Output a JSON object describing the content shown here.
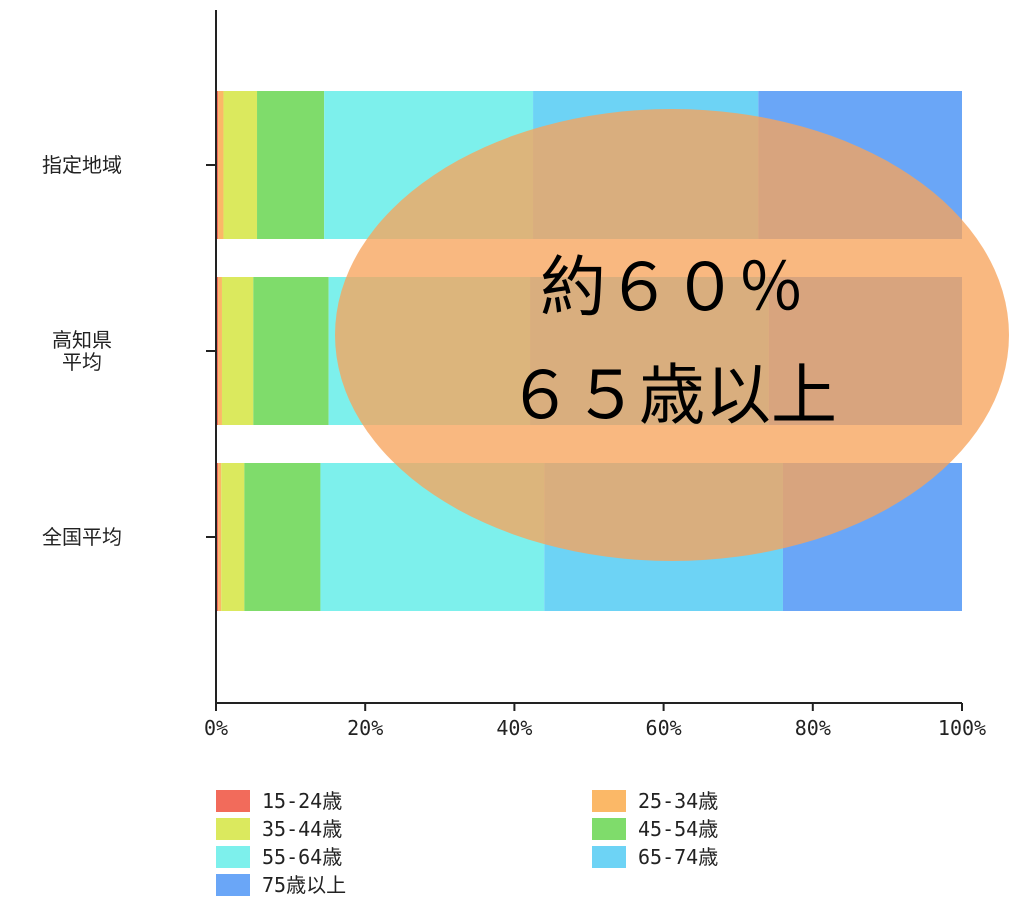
{
  "chart_data": {
    "type": "bar",
    "orientation": "horizontal",
    "stacked": "percent",
    "categories": [
      "指定地域",
      "高知県\n平均",
      "全国平均"
    ],
    "xlim": [
      0,
      100
    ],
    "x_ticks": [
      "0%",
      "20%",
      "40%",
      "60%",
      "80%",
      "100%"
    ],
    "grid": false,
    "legend_position": "bottom",
    "series": [
      {
        "name": "15-24歳",
        "color": "#f26b5b",
        "values": [
          0.3,
          0.3,
          0.3
        ]
      },
      {
        "name": "25-34歳",
        "color": "#fbb867",
        "values": [
          0.7,
          0.5,
          0.4
        ]
      },
      {
        "name": "35-44歳",
        "color": "#dbe95e",
        "values": [
          4.5,
          4.2,
          3.1
        ]
      },
      {
        "name": "45-54歳",
        "color": "#7fdc6b",
        "values": [
          9.0,
          10.1,
          10.2
        ]
      },
      {
        "name": "55-64歳",
        "color": "#7df0ec",
        "values": [
          28.0,
          27.0,
          30.0
        ]
      },
      {
        "name": "65-74歳",
        "color": "#6dd3f5",
        "values": [
          30.2,
          32.0,
          32.0
        ]
      },
      {
        "name": "75歳以上",
        "color": "#6aa6f7",
        "values": [
          27.3,
          25.9,
          24.0
        ]
      }
    ],
    "annotation": {
      "lines": [
        "約６０％",
        "６５歳以上"
      ],
      "fill": "#f7a45c",
      "shape": "ellipse"
    }
  }
}
